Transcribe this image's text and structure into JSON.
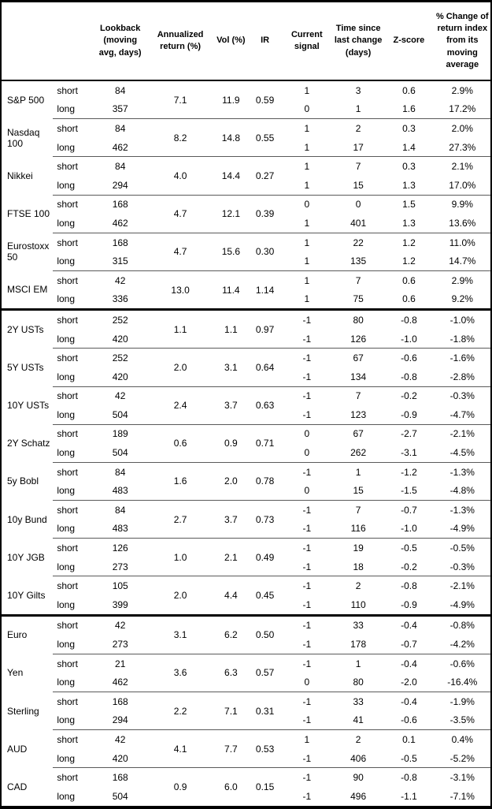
{
  "table": {
    "columns": {
      "asset": "",
      "leg": "",
      "lookback": "Lookback\n(moving\navg, days)",
      "annualized_return": "Annualized\nreturn (%)",
      "vol": "Vol (%)",
      "ir": "IR",
      "current_signal": "Current\nsignal",
      "time_since": "Time since\nlast change\n(days)",
      "z_score": "Z-score",
      "pct_change": "% Change of\nreturn index\nfrom its\nmoving\naverage"
    },
    "leg_labels": [
      "short",
      "long"
    ],
    "groups": [
      {
        "asset": "S&P 500",
        "section": "equities",
        "section_start": false,
        "lookback": [
          "84",
          "357"
        ],
        "annualized": "7.1",
        "vol": "11.9",
        "ir": "0.59",
        "signal": [
          "1",
          "0"
        ],
        "time": [
          "3",
          "1"
        ],
        "z": [
          "0.6",
          "1.6"
        ],
        "chg": [
          "2.9%",
          "17.2%"
        ]
      },
      {
        "asset": "Nasdaq 100",
        "section": "equities",
        "section_start": false,
        "lookback": [
          "84",
          "462"
        ],
        "annualized": "8.2",
        "vol": "14.8",
        "ir": "0.55",
        "signal": [
          "1",
          "1"
        ],
        "time": [
          "2",
          "17"
        ],
        "z": [
          "0.3",
          "1.4"
        ],
        "chg": [
          "2.0%",
          "27.3%"
        ]
      },
      {
        "asset": "Nikkei",
        "section": "equities",
        "section_start": false,
        "lookback": [
          "84",
          "294"
        ],
        "annualized": "4.0",
        "vol": "14.4",
        "ir": "0.27",
        "signal": [
          "1",
          "1"
        ],
        "time": [
          "7",
          "15"
        ],
        "z": [
          "0.3",
          "1.3"
        ],
        "chg": [
          "2.1%",
          "17.0%"
        ]
      },
      {
        "asset": "FTSE 100",
        "section": "equities",
        "section_start": false,
        "lookback": [
          "168",
          "462"
        ],
        "annualized": "4.7",
        "vol": "12.1",
        "ir": "0.39",
        "signal": [
          "0",
          "1"
        ],
        "time": [
          "0",
          "401"
        ],
        "z": [
          "1.5",
          "1.3"
        ],
        "chg": [
          "9.9%",
          "13.6%"
        ]
      },
      {
        "asset": "Eurostoxx 50",
        "section": "equities",
        "section_start": false,
        "lookback": [
          "168",
          "315"
        ],
        "annualized": "4.7",
        "vol": "15.6",
        "ir": "0.30",
        "signal": [
          "1",
          "1"
        ],
        "time": [
          "22",
          "135"
        ],
        "z": [
          "1.2",
          "1.2"
        ],
        "chg": [
          "11.0%",
          "14.7%"
        ]
      },
      {
        "asset": "MSCI EM",
        "section": "equities",
        "section_start": false,
        "lookback": [
          "42",
          "336"
        ],
        "annualized": "13.0",
        "vol": "11.4",
        "ir": "1.14",
        "signal": [
          "1",
          "1"
        ],
        "time": [
          "7",
          "75"
        ],
        "z": [
          "0.6",
          "0.6"
        ],
        "chg": [
          "2.9%",
          "9.2%"
        ]
      },
      {
        "asset": "2Y USTs",
        "section": "bonds",
        "section_start": true,
        "lookback": [
          "252",
          "420"
        ],
        "annualized": "1.1",
        "vol": "1.1",
        "ir": "0.97",
        "signal": [
          "-1",
          "-1"
        ],
        "time": [
          "80",
          "126"
        ],
        "z": [
          "-0.8",
          "-1.0"
        ],
        "chg": [
          "-1.0%",
          "-1.8%"
        ]
      },
      {
        "asset": "5Y USTs",
        "section": "bonds",
        "section_start": false,
        "lookback": [
          "252",
          "420"
        ],
        "annualized": "2.0",
        "vol": "3.1",
        "ir": "0.64",
        "signal": [
          "-1",
          "-1"
        ],
        "time": [
          "67",
          "134"
        ],
        "z": [
          "-0.6",
          "-0.8"
        ],
        "chg": [
          "-1.6%",
          "-2.8%"
        ]
      },
      {
        "asset": "10Y USTs",
        "section": "bonds",
        "section_start": false,
        "lookback": [
          "42",
          "504"
        ],
        "annualized": "2.4",
        "vol": "3.7",
        "ir": "0.63",
        "signal": [
          "-1",
          "-1"
        ],
        "time": [
          "7",
          "123"
        ],
        "z": [
          "-0.2",
          "-0.9"
        ],
        "chg": [
          "-0.3%",
          "-4.7%"
        ]
      },
      {
        "asset": "2Y Schatz",
        "section": "bonds",
        "section_start": false,
        "lookback": [
          "189",
          "504"
        ],
        "annualized": "0.6",
        "vol": "0.9",
        "ir": "0.71",
        "signal": [
          "0",
          "0"
        ],
        "time": [
          "67",
          "262"
        ],
        "z": [
          "-2.7",
          "-3.1"
        ],
        "chg": [
          "-2.1%",
          "-4.5%"
        ]
      },
      {
        "asset": "5y Bobl",
        "section": "bonds",
        "section_start": false,
        "lookback": [
          "84",
          "483"
        ],
        "annualized": "1.6",
        "vol": "2.0",
        "ir": "0.78",
        "signal": [
          "-1",
          "0"
        ],
        "time": [
          "1",
          "15"
        ],
        "z": [
          "-1.2",
          "-1.5"
        ],
        "chg": [
          "-1.3%",
          "-4.8%"
        ]
      },
      {
        "asset": "10y Bund",
        "section": "bonds",
        "section_start": false,
        "lookback": [
          "84",
          "483"
        ],
        "annualized": "2.7",
        "vol": "3.7",
        "ir": "0.73",
        "signal": [
          "-1",
          "-1"
        ],
        "time": [
          "7",
          "116"
        ],
        "z": [
          "-0.7",
          "-1.0"
        ],
        "chg": [
          "-1.3%",
          "-4.9%"
        ]
      },
      {
        "asset": "10Y JGB",
        "section": "bonds",
        "section_start": false,
        "lookback": [
          "126",
          "273"
        ],
        "annualized": "1.0",
        "vol": "2.1",
        "ir": "0.49",
        "signal": [
          "-1",
          "-1"
        ],
        "time": [
          "19",
          "18"
        ],
        "z": [
          "-0.5",
          "-0.2"
        ],
        "chg": [
          "-0.5%",
          "-0.3%"
        ]
      },
      {
        "asset": "10Y Gilts",
        "section": "bonds",
        "section_start": false,
        "lookback": [
          "105",
          "399"
        ],
        "annualized": "2.0",
        "vol": "4.4",
        "ir": "0.45",
        "signal": [
          "-1",
          "-1"
        ],
        "time": [
          "2",
          "110"
        ],
        "z": [
          "-0.8",
          "-0.9"
        ],
        "chg": [
          "-2.1%",
          "-4.9%"
        ]
      },
      {
        "asset": "Euro",
        "section": "fx",
        "section_start": true,
        "lookback": [
          "42",
          "273"
        ],
        "annualized": "3.1",
        "vol": "6.2",
        "ir": "0.50",
        "signal": [
          "-1",
          "-1"
        ],
        "time": [
          "33",
          "178"
        ],
        "z": [
          "-0.4",
          "-0.7"
        ],
        "chg": [
          "-0.8%",
          "-4.2%"
        ]
      },
      {
        "asset": "Yen",
        "section": "fx",
        "section_start": false,
        "lookback": [
          "21",
          "462"
        ],
        "annualized": "3.6",
        "vol": "6.3",
        "ir": "0.57",
        "signal": [
          "-1",
          "0"
        ],
        "time": [
          "1",
          "80"
        ],
        "z": [
          "-0.4",
          "-2.0"
        ],
        "chg": [
          "-0.6%",
          "-16.4%"
        ]
      },
      {
        "asset": "Sterling",
        "section": "fx",
        "section_start": false,
        "lookback": [
          "168",
          "294"
        ],
        "annualized": "2.2",
        "vol": "7.1",
        "ir": "0.31",
        "signal": [
          "-1",
          "-1"
        ],
        "time": [
          "33",
          "41"
        ],
        "z": [
          "-0.4",
          "-0.6"
        ],
        "chg": [
          "-1.9%",
          "-3.5%"
        ]
      },
      {
        "asset": "AUD",
        "section": "fx",
        "section_start": false,
        "lookback": [
          "42",
          "420"
        ],
        "annualized": "4.1",
        "vol": "7.7",
        "ir": "0.53",
        "signal": [
          "1",
          "-1"
        ],
        "time": [
          "2",
          "406"
        ],
        "z": [
          "0.1",
          "-0.5"
        ],
        "chg": [
          "0.4%",
          "-5.2%"
        ]
      },
      {
        "asset": "CAD",
        "section": "fx",
        "section_start": false,
        "lookback": [
          "168",
          "504"
        ],
        "annualized": "0.9",
        "vol": "6.0",
        "ir": "0.15",
        "signal": [
          "-1",
          "-1"
        ],
        "time": [
          "90",
          "496"
        ],
        "z": [
          "-0.8",
          "-1.1"
        ],
        "chg": [
          "-3.1%",
          "-7.1%"
        ]
      }
    ]
  },
  "colors": {
    "outer_border": "#000000",
    "section_border": "#000000",
    "group_separator": "#5a5a5a",
    "text": "#000000",
    "background": "#ffffff"
  }
}
